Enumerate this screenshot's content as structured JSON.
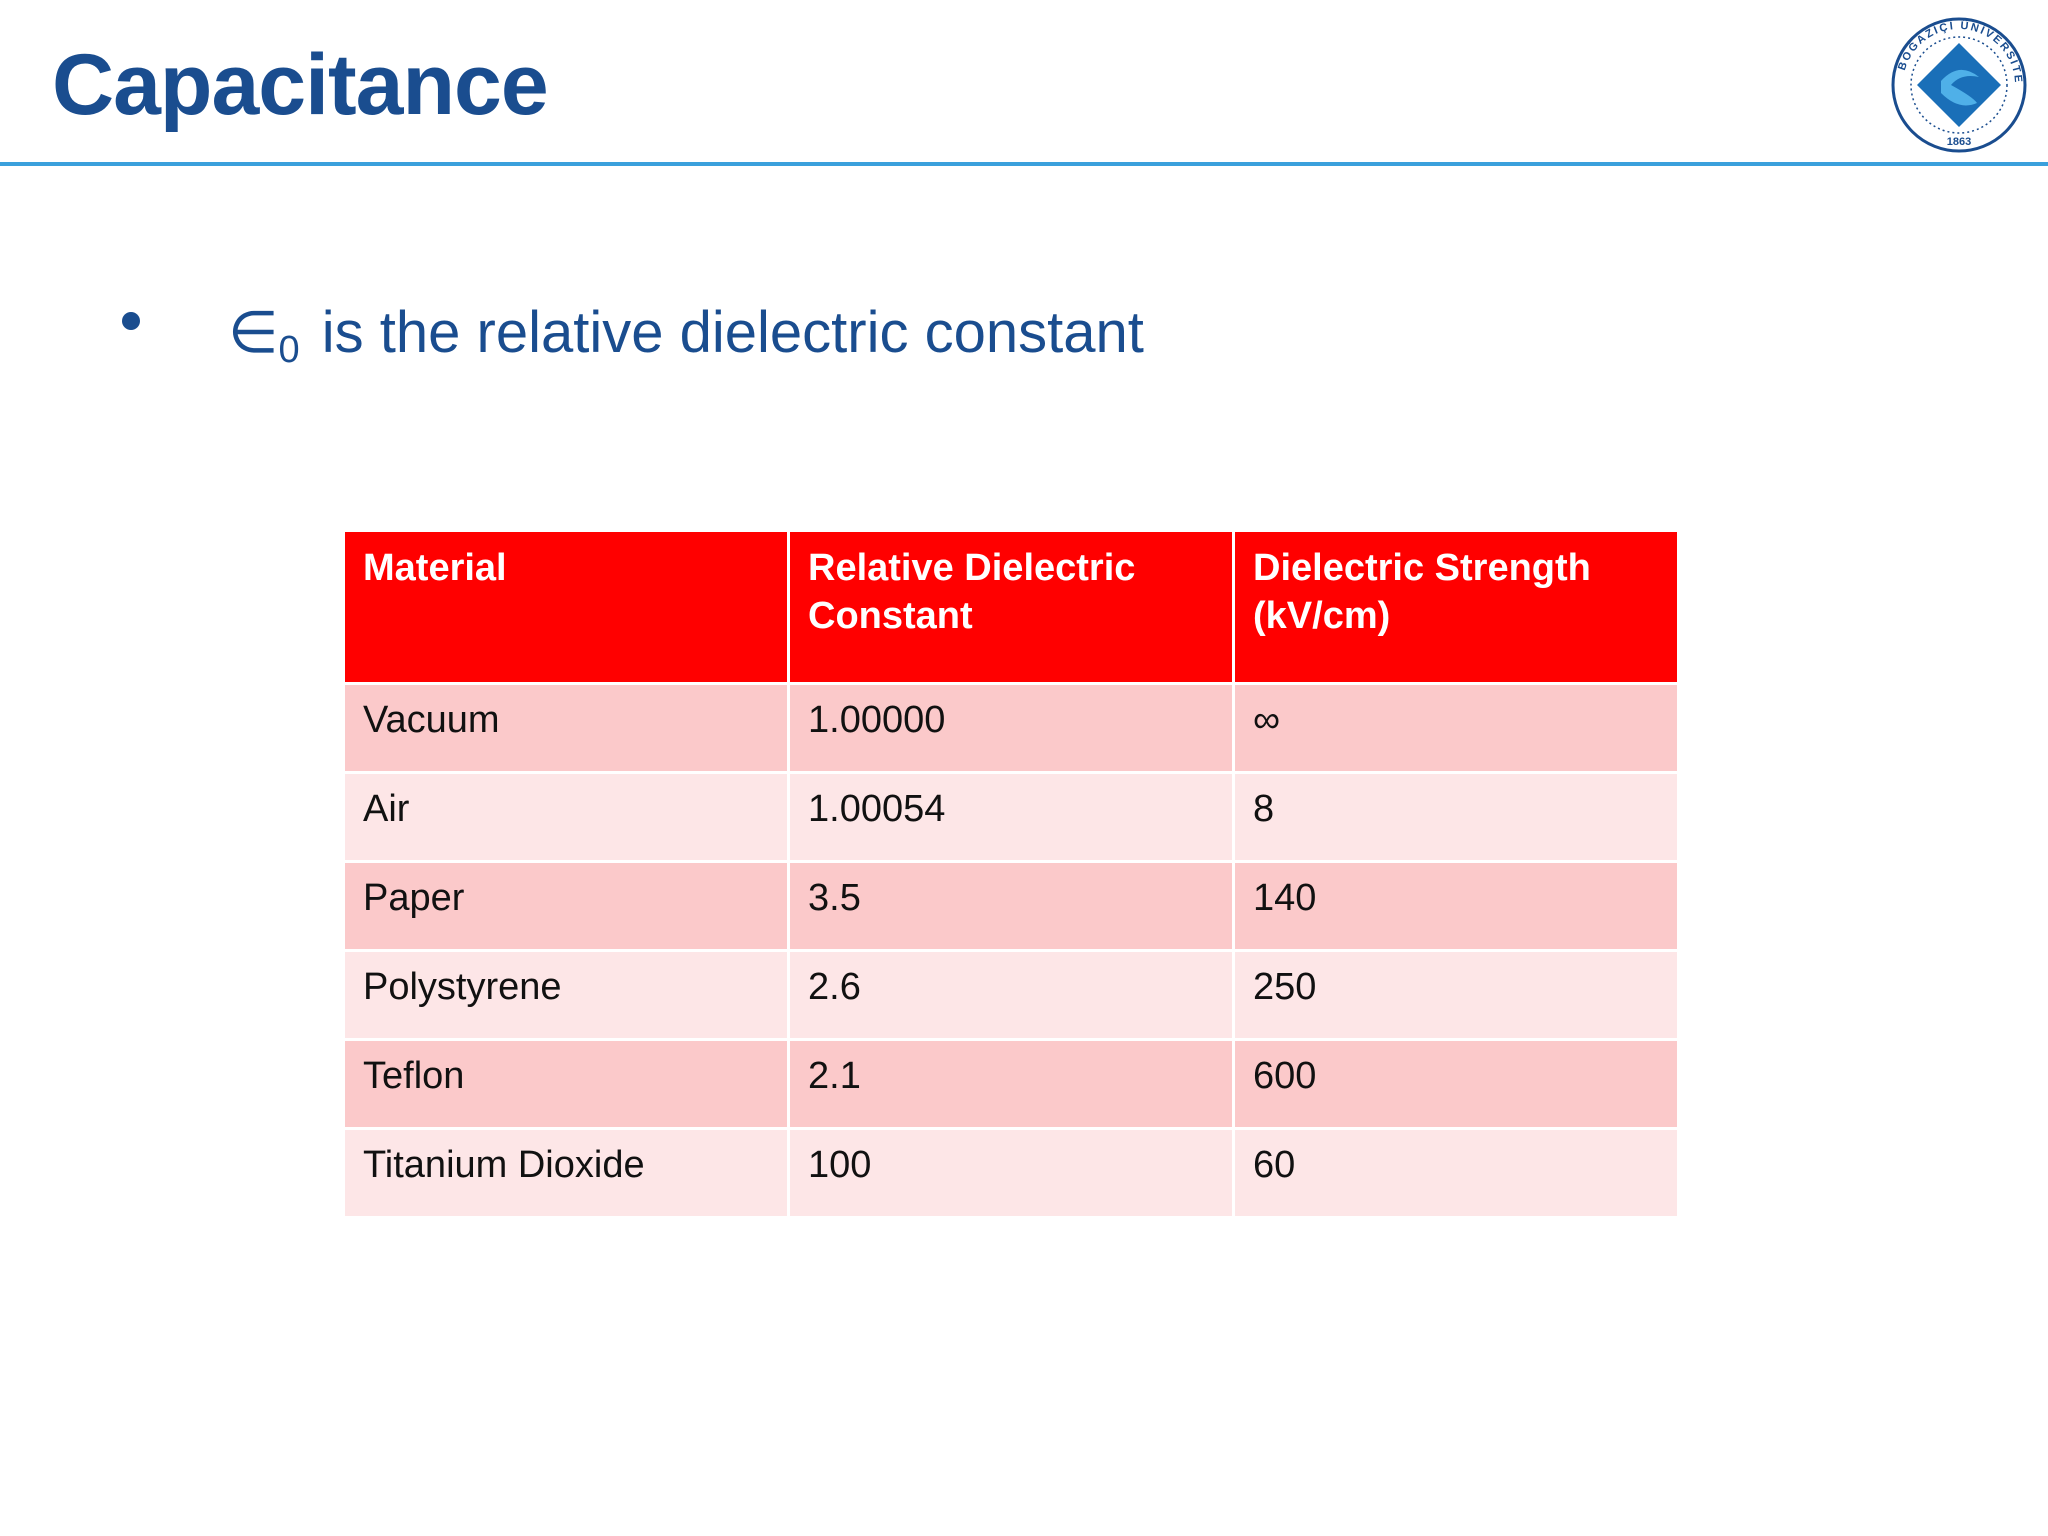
{
  "slide": {
    "title": "Capacitance",
    "bullet": {
      "symbol": "∈",
      "subscript": "0",
      "text": "is the relative dielectric constant"
    },
    "logo": {
      "ring_text": "BOĞAZİÇİ ÜNİVERSİTESİ",
      "year": "1863"
    }
  },
  "table": {
    "headers": [
      "Material",
      "Relative Dielectric Constant",
      "Dielectric Strength (kV/cm)"
    ],
    "rows": [
      [
        "Vacuum",
        "1.00000",
        "∞"
      ],
      [
        "Air",
        "1.00054",
        "8"
      ],
      [
        "Paper",
        "3.5",
        "140"
      ],
      [
        "Polystyrene",
        "2.6",
        "250"
      ],
      [
        "Teflon",
        "2.1",
        "600"
      ],
      [
        "Titanium Dioxide",
        "100",
        "60"
      ]
    ]
  },
  "colors": {
    "title": "#1a4d8f",
    "rule": "#3aa0dc",
    "header_bg": "#ff0000",
    "row_odd": "#fbc9ca",
    "row_even": "#fde6e7"
  }
}
